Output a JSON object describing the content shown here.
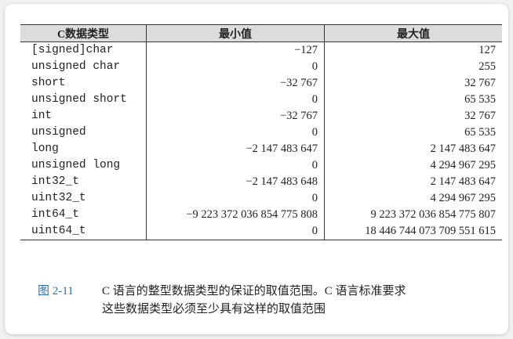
{
  "table": {
    "headers": [
      "C数据类型",
      "最小值",
      "最大值"
    ],
    "groups": [
      {
        "types": [
          "[signed]char",
          "unsigned char"
        ],
        "min": [
          "−127",
          "0"
        ],
        "max": [
          "127",
          "255"
        ]
      },
      {
        "types": [
          "short",
          "unsigned short"
        ],
        "min": [
          "−32 767",
          "0"
        ],
        "max": [
          "32 767",
          "65 535"
        ]
      },
      {
        "types": [
          "int",
          "unsigned"
        ],
        "min": [
          "−32 767",
          "0"
        ],
        "max": [
          "32 767",
          "65 535"
        ]
      },
      {
        "types": [
          "long",
          "unsigned long"
        ],
        "min": [
          "−2 147 483 647",
          "0"
        ],
        "max": [
          "2 147 483 647",
          "4 294 967 295"
        ]
      },
      {
        "types": [
          "int32_t",
          "uint32_t"
        ],
        "min": [
          "−2 147 483 648",
          "0"
        ],
        "max": [
          "2 147 483 647",
          "4 294 967 295"
        ]
      },
      {
        "types": [
          "int64_t",
          "uint64_t"
        ],
        "min": [
          "−9 223 372 036 854 775 808",
          "0"
        ],
        "max": [
          "9 223 372 036 854 775 807",
          "18 446 744 073 709 551 615"
        ]
      }
    ]
  },
  "caption": {
    "figure_label": "图 2-11",
    "line1": "C 语言的整型数据类型的保证的取值范围。C 语言标准要求",
    "line2": "这些数据类型必须至少具有这样的取值范围"
  },
  "colors": {
    "caption_label": "#2a6fb5",
    "header_bg": "#dcdcdc"
  }
}
